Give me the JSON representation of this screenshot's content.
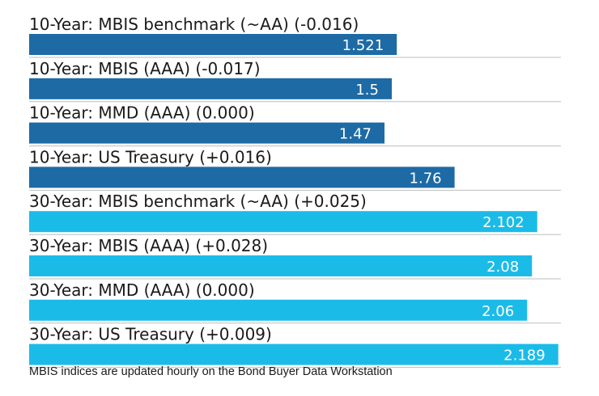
{
  "chart_data": {
    "type": "bar",
    "orientation": "horizontal",
    "categories": [
      "10-Year: MBIS benchmark (~AA) (-0.016)",
      "10-Year: MBIS (AAA) (-0.017)",
      "10-Year: MMD (AAA) (0.000)",
      "10-Year: US Treasury (+0.016)",
      "30-Year: MBIS benchmark (~AA) (+0.025)",
      "30-Year: MBIS (AAA) (+0.028)",
      "30-Year: MMD (AAA) (0.000)",
      "30-Year: US Treasury (+0.009)"
    ],
    "values": [
      1.521,
      1.5,
      1.47,
      1.76,
      2.102,
      2.08,
      2.06,
      2.189
    ],
    "value_labels": [
      "1.521",
      "1.5",
      "1.47",
      "1.76",
      "2.102",
      "2.08",
      "2.06",
      "2.189"
    ],
    "title": "",
    "xlabel": "",
    "ylabel": "",
    "xlim": [
      0,
      2.2
    ],
    "grid": false,
    "legend": "none",
    "colors": {
      "ten_year": "#1d6aa5",
      "thirty_year": "#1bbbe8",
      "separator": "#bdbdbd"
    },
    "note": "MBIS indices are updated hourly on the Bond Buyer Data Workstation"
  }
}
